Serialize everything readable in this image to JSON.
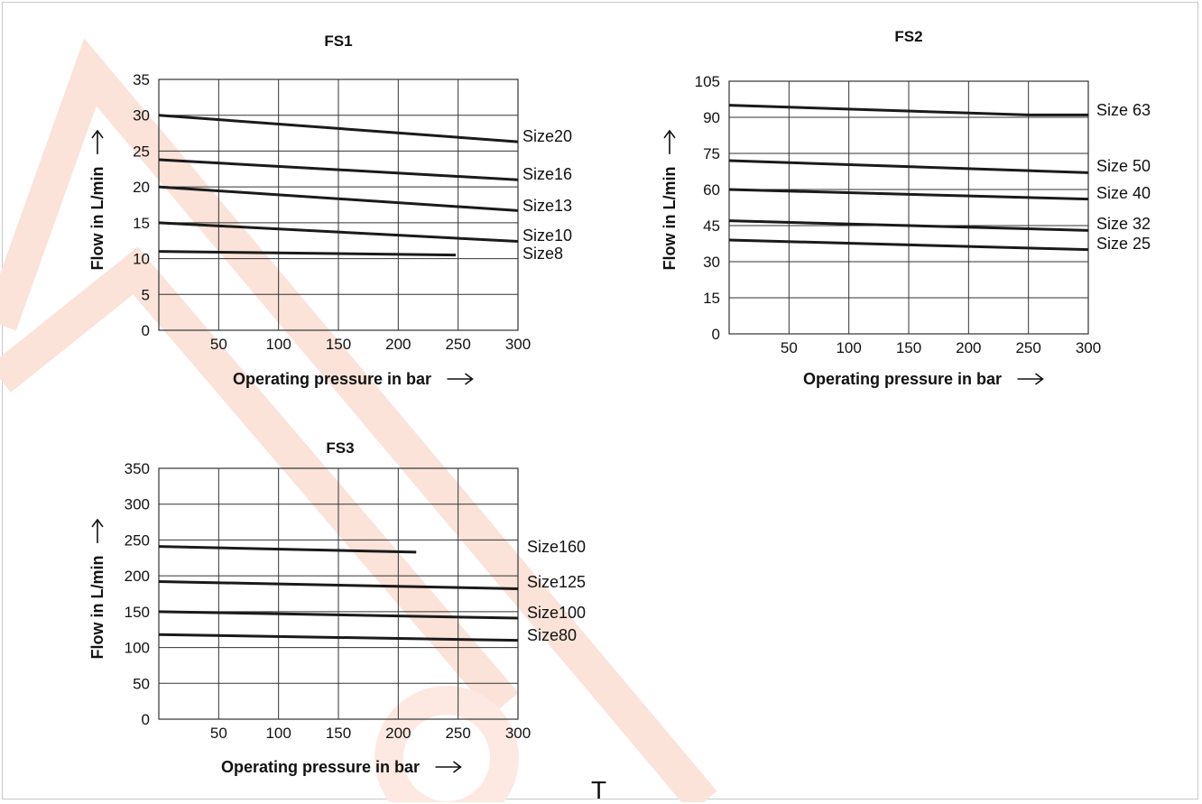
{
  "colors": {
    "line": "#1a1a1a",
    "grid": "#333333",
    "watermark": "#fbe3d9"
  },
  "watermark_text": "T",
  "chart_data": [
    {
      "type": "line",
      "title": "FS1",
      "xlabel": "Operating pressure in bar",
      "ylabel": "Flow in L/min",
      "xlim": [
        0,
        300
      ],
      "ylim": [
        0,
        35
      ],
      "xticks": [
        50,
        100,
        150,
        200,
        250,
        300
      ],
      "yticks": [
        0,
        5,
        10,
        15,
        20,
        25,
        30,
        35
      ],
      "xtick_labels": [
        "50",
        "100",
        "150",
        "200",
        "250",
        "300"
      ],
      "ytick_labels": [
        "0",
        "5",
        "10",
        "15",
        "20",
        "25",
        "30",
        "35"
      ],
      "grid": true,
      "series": [
        {
          "name": "Size20",
          "x": [
            0,
            300
          ],
          "y": [
            30,
            26.3
          ]
        },
        {
          "name": "Size16",
          "x": [
            0,
            300
          ],
          "y": [
            23.8,
            21
          ]
        },
        {
          "name": "Size13",
          "x": [
            0,
            300
          ],
          "y": [
            20,
            16.7
          ]
        },
        {
          "name": "Size10",
          "x": [
            0,
            300
          ],
          "y": [
            15,
            12.4
          ]
        },
        {
          "name": "Size8",
          "x": [
            0,
            248
          ],
          "y": [
            11,
            10.5
          ]
        }
      ]
    },
    {
      "type": "line",
      "title": "FS2",
      "xlabel": "Operating pressure in bar",
      "ylabel": "Flow in L/min",
      "xlim": [
        0,
        300
      ],
      "ylim": [
        0,
        105
      ],
      "xticks": [
        50,
        100,
        150,
        200,
        250,
        300
      ],
      "yticks": [
        0,
        15,
        30,
        45,
        60,
        75,
        90,
        105
      ],
      "xtick_labels": [
        "50",
        "100",
        "150",
        "200",
        "250",
        "300"
      ],
      "ytick_labels": [
        "0",
        "15",
        "30",
        "45",
        "60",
        "75",
        "90",
        "105"
      ],
      "grid": true,
      "series": [
        {
          "name": "Size 63",
          "x": [
            0,
            250,
            300
          ],
          "y": [
            95,
            91,
            91
          ]
        },
        {
          "name": "Size 50",
          "x": [
            0,
            300
          ],
          "y": [
            72,
            67
          ]
        },
        {
          "name": "Size 40",
          "x": [
            0,
            300
          ],
          "y": [
            60,
            56
          ]
        },
        {
          "name": "Size 32",
          "x": [
            0,
            300
          ],
          "y": [
            47,
            43
          ]
        },
        {
          "name": "Size 25",
          "x": [
            0,
            300
          ],
          "y": [
            39,
            35
          ]
        }
      ]
    },
    {
      "type": "line",
      "title": "FS3",
      "xlabel": "Operating pressure in bar",
      "ylabel": "Flow in L/min",
      "xlim": [
        0,
        300
      ],
      "ylim": [
        0,
        350
      ],
      "xticks": [
        50,
        100,
        150,
        200,
        250,
        300
      ],
      "yticks": [
        0,
        50,
        100,
        150,
        200,
        250,
        300,
        350
      ],
      "xtick_labels": [
        "50",
        "100",
        "150",
        "200",
        "250",
        "300"
      ],
      "ytick_labels": [
        "0",
        "50",
        "100",
        "150",
        "200",
        "250",
        "300",
        "350"
      ],
      "grid": true,
      "series": [
        {
          "name": "Size160",
          "x": [
            0,
            215
          ],
          "y": [
            241,
            233
          ]
        },
        {
          "name": "Size125",
          "x": [
            0,
            300
          ],
          "y": [
            192,
            182
          ]
        },
        {
          "name": "Size100",
          "x": [
            0,
            300
          ],
          "y": [
            150,
            141
          ]
        },
        {
          "name": "Size80",
          "x": [
            0,
            300
          ],
          "y": [
            118,
            110
          ]
        }
      ]
    }
  ]
}
